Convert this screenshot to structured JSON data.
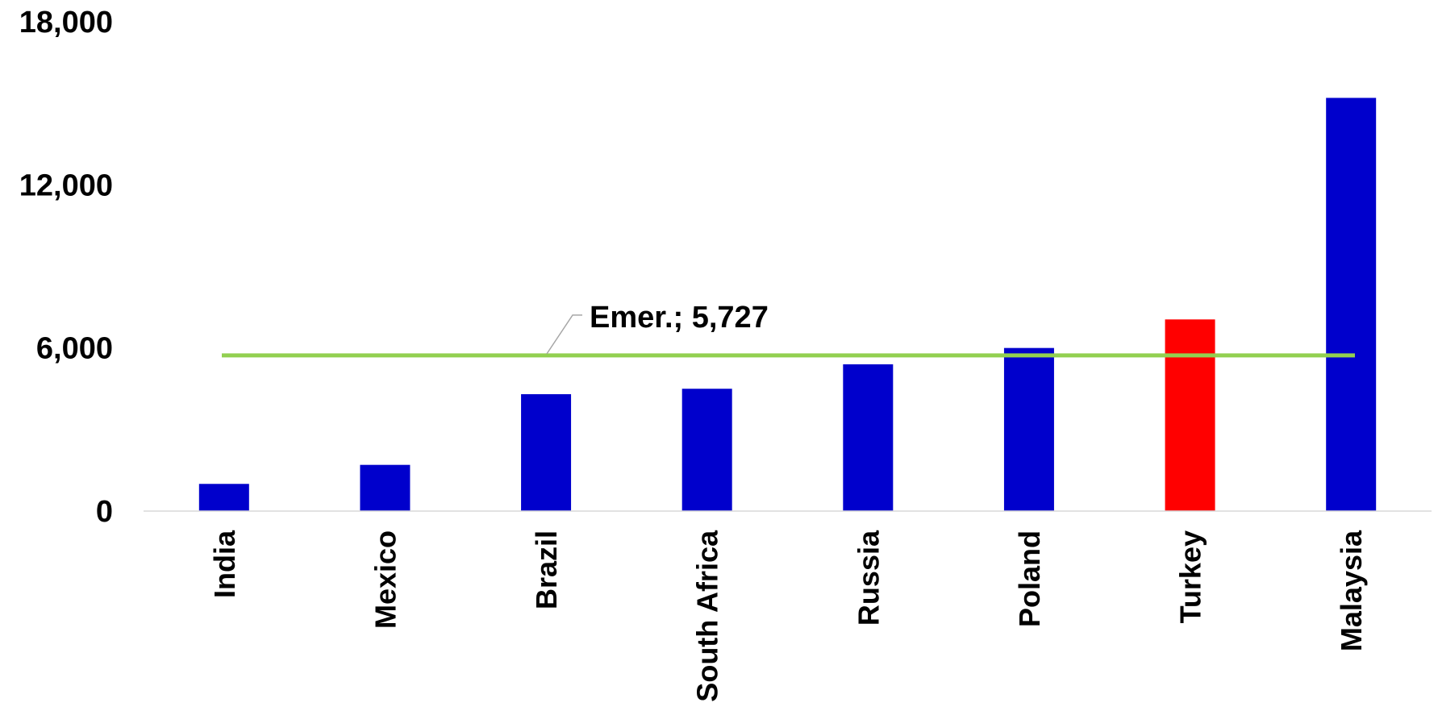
{
  "chart_data": {
    "type": "bar",
    "categories": [
      "India",
      "Mexico",
      "Brazil",
      "South Africa",
      "Russia",
      "Poland",
      "Turkey",
      "Malaysia"
    ],
    "values": [
      1000,
      1700,
      4300,
      4500,
      5400,
      6000,
      7050,
      15200
    ],
    "bar_colors": [
      "#0000CC",
      "#0000CC",
      "#0000CC",
      "#0000CC",
      "#0000CC",
      "#0000CC",
      "#FF0000",
      "#0000CC"
    ],
    "ylim": [
      0,
      18000
    ],
    "yticks": [
      0,
      6000,
      12000,
      18000
    ],
    "ytick_labels": [
      "0",
      "6,000",
      "12,000",
      "18,000"
    ],
    "title": "",
    "xlabel": "",
    "ylabel": "",
    "grid": false,
    "reference_line": {
      "value": 5727,
      "label": "Emer.; 5,727",
      "color": "#92D050"
    }
  }
}
